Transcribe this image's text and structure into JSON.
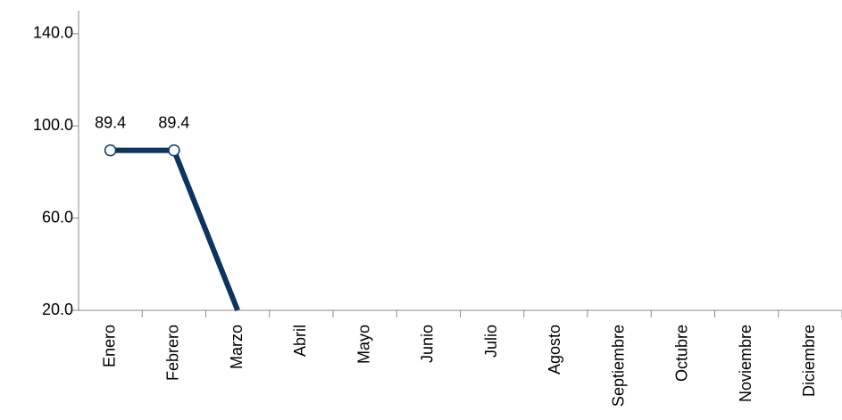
{
  "chart_data": {
    "type": "line",
    "categories": [
      "Enero",
      "Febrero",
      "Marzo",
      "Abril",
      "Mayo",
      "Junio",
      "Julio",
      "Agosto",
      "Septiembre",
      "Octubre",
      "Noviembre",
      "Diciembre"
    ],
    "series": [
      {
        "color": "#0b3560",
        "values": [
          89.4,
          89.4,
          20,
          null,
          null,
          null,
          null,
          null,
          null,
          null,
          null,
          null
        ],
        "value_labels": [
          "89.4",
          "89.4",
          null,
          null,
          null,
          null,
          null,
          null,
          null,
          null,
          null,
          null
        ]
      }
    ],
    "ylim": [
      20,
      150
    ],
    "yticks": [
      {
        "value": 20,
        "label": "20.0"
      },
      {
        "value": 60,
        "label": "60.0"
      },
      {
        "value": 100,
        "label": "100.0"
      },
      {
        "value": 140,
        "label": "140.0"
      }
    ]
  }
}
